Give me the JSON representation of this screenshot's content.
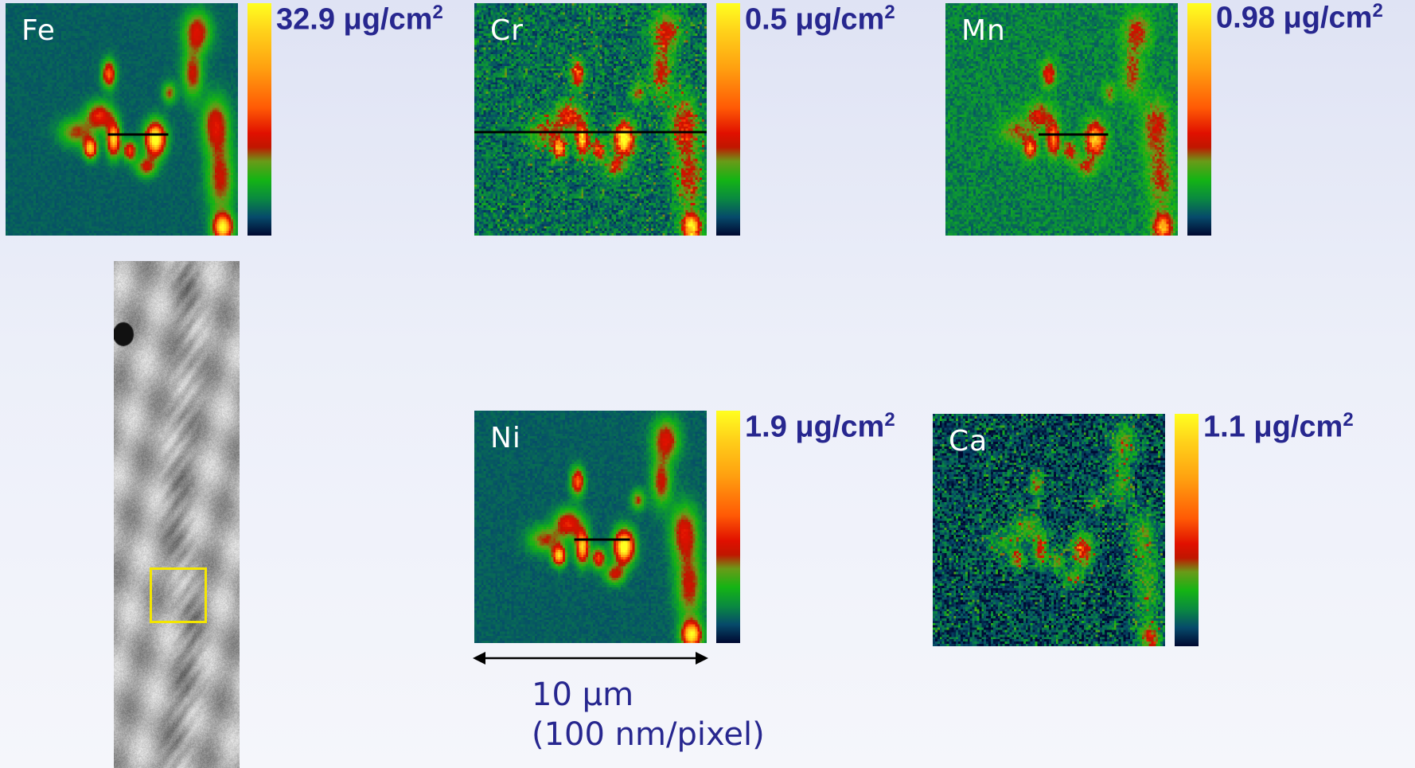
{
  "panels": [
    {
      "element": "Fe",
      "max_value": "32.9",
      "unit": "μg/cm",
      "unit_exp": "2"
    },
    {
      "element": "Cr",
      "max_value": "0.5",
      "unit": "μg/cm",
      "unit_exp": "2"
    },
    {
      "element": "Mn",
      "max_value": "0.98",
      "unit": "μg/cm",
      "unit_exp": "2"
    },
    {
      "element": "Ni",
      "max_value": "1.9",
      "unit": "μg/cm",
      "unit_exp": "2"
    },
    {
      "element": "Ca",
      "max_value": "1.1",
      "unit": "μg/cm",
      "unit_exp": "2"
    }
  ],
  "scale_bar": {
    "length": "10 μm",
    "resolution": "(100 nm/pixel)"
  },
  "colors": {
    "text": "#27278f",
    "roi_box": "#f4e600",
    "map_background": "#0b1e5a"
  },
  "colormap": [
    "#000830",
    "#064a6a",
    "#0a8a40",
    "#14b414",
    "#6a9a18",
    "#c01600",
    "#e01000",
    "#ff5a05",
    "#ffa010",
    "#ffd21a",
    "#ffff20"
  ]
}
